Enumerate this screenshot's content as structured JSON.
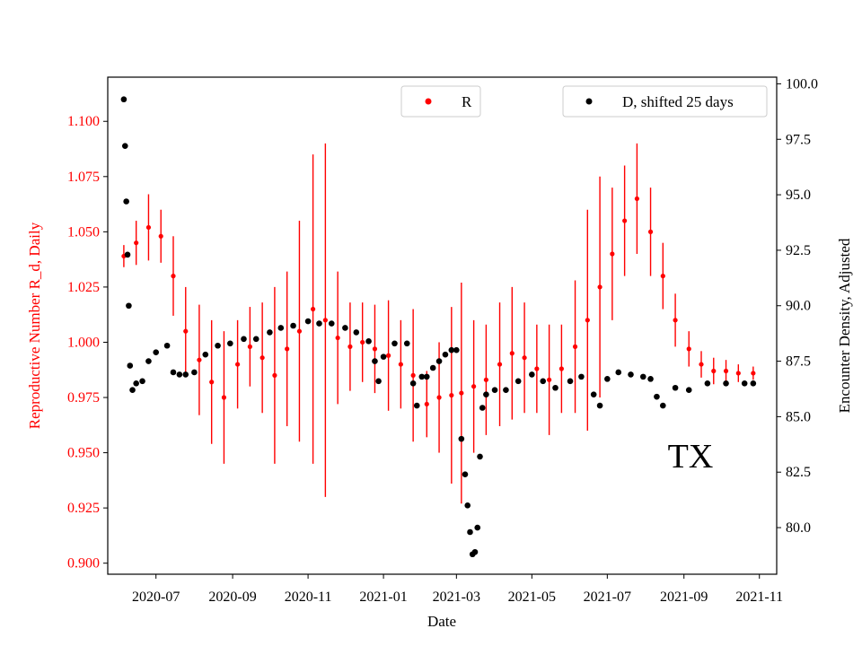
{
  "chart_data": {
    "type": "scatter",
    "annotation": "TX",
    "xlabel": "Date",
    "ylabel_left": "Reproductive Number R_d, Daily",
    "ylabel_right": "Encounter Density, Adjusted",
    "x_range": [
      "2020-05-23",
      "2021-11-15"
    ],
    "ylim_left": [
      0.895,
      1.12
    ],
    "ylim_right": [
      77.9,
      100.3
    ],
    "x_ticks": [
      "2020-07",
      "2020-09",
      "2020-11",
      "2021-01",
      "2021-03",
      "2021-05",
      "2021-07",
      "2021-09",
      "2021-11"
    ],
    "left_ticks": [
      "0.900",
      "0.925",
      "0.950",
      "0.975",
      "1.000",
      "1.025",
      "1.050",
      "1.075",
      "1.100"
    ],
    "right_ticks": [
      "80.0",
      "82.5",
      "85.0",
      "87.5",
      "90.0",
      "92.5",
      "95.0",
      "97.5",
      "100.0"
    ],
    "grid": false,
    "colors": {
      "R": "#ff0000",
      "D": "#000000",
      "left_axis": "#ff0000",
      "right_axis": "#000000"
    },
    "legends": [
      {
        "label": "R",
        "placement": "top-center",
        "color": "#ff0000"
      },
      {
        "label": "D, shifted 25 days",
        "placement": "top-right",
        "color": "#000000"
      }
    ],
    "series": [
      {
        "name": "R",
        "axis": "left",
        "marker": "point-with-errorbars",
        "x": [
          "2020-06-05",
          "2020-06-15",
          "2020-06-25",
          "2020-07-05",
          "2020-07-15",
          "2020-07-25",
          "2020-08-05",
          "2020-08-15",
          "2020-08-25",
          "2020-09-05",
          "2020-09-15",
          "2020-09-25",
          "2020-10-05",
          "2020-10-15",
          "2020-10-25",
          "2020-11-05",
          "2020-11-15",
          "2020-11-25",
          "2020-12-05",
          "2020-12-15",
          "2020-12-25",
          "2021-01-05",
          "2021-01-15",
          "2021-01-25",
          "2021-02-05",
          "2021-02-15",
          "2021-02-25",
          "2021-03-05",
          "2021-03-15",
          "2021-03-25",
          "2021-04-05",
          "2021-04-15",
          "2021-04-25",
          "2021-05-05",
          "2021-05-15",
          "2021-05-25",
          "2021-06-05",
          "2021-06-15",
          "2021-06-25",
          "2021-07-05",
          "2021-07-15",
          "2021-07-25",
          "2021-08-05",
          "2021-08-15",
          "2021-08-25",
          "2021-09-05",
          "2021-09-15",
          "2021-09-25",
          "2021-10-05",
          "2021-10-15",
          "2021-10-27"
        ],
        "y": [
          1.039,
          1.045,
          1.052,
          1.048,
          1.03,
          1.005,
          0.992,
          0.982,
          0.975,
          0.99,
          0.998,
          0.993,
          0.985,
          0.997,
          1.005,
          1.015,
          1.01,
          1.002,
          0.998,
          1.0,
          0.997,
          0.994,
          0.99,
          0.985,
          0.972,
          0.975,
          0.976,
          0.977,
          0.98,
          0.983,
          0.99,
          0.995,
          0.993,
          0.988,
          0.983,
          0.988,
          0.998,
          1.01,
          1.025,
          1.04,
          1.055,
          1.065,
          1.05,
          1.03,
          1.01,
          0.997,
          0.99,
          0.987,
          0.987,
          0.986,
          0.986
        ],
        "err": [
          0.005,
          0.01,
          0.015,
          0.012,
          0.018,
          0.02,
          0.025,
          0.028,
          0.03,
          0.02,
          0.018,
          0.025,
          0.04,
          0.035,
          0.05,
          0.07,
          0.08,
          0.03,
          0.02,
          0.018,
          0.02,
          0.025,
          0.02,
          0.03,
          0.015,
          0.025,
          0.04,
          0.05,
          0.03,
          0.025,
          0.028,
          0.03,
          0.025,
          0.02,
          0.025,
          0.02,
          0.03,
          0.05,
          0.05,
          0.03,
          0.025,
          0.025,
          0.02,
          0.015,
          0.012,
          0.008,
          0.006,
          0.006,
          0.005,
          0.004,
          0.003
        ]
      },
      {
        "name": "D, shifted 25 days",
        "axis": "right",
        "marker": "point",
        "x": [
          "2020-06-05",
          "2020-06-06",
          "2020-06-07",
          "2020-06-08",
          "2020-06-09",
          "2020-06-10",
          "2020-06-12",
          "2020-06-15",
          "2020-06-20",
          "2020-06-25",
          "2020-07-01",
          "2020-07-10",
          "2020-07-15",
          "2020-07-20",
          "2020-07-25",
          "2020-08-01",
          "2020-08-10",
          "2020-08-20",
          "2020-08-30",
          "2020-09-10",
          "2020-09-20",
          "2020-10-01",
          "2020-10-10",
          "2020-10-20",
          "2020-11-01",
          "2020-11-10",
          "2020-11-20",
          "2020-12-01",
          "2020-12-10",
          "2020-12-20",
          "2020-12-25",
          "2020-12-28",
          "2021-01-01",
          "2021-01-10",
          "2021-01-20",
          "2021-01-25",
          "2021-01-28",
          "2021-02-01",
          "2021-02-05",
          "2021-02-10",
          "2021-02-15",
          "2021-02-20",
          "2021-02-25",
          "2021-03-01",
          "2021-03-05",
          "2021-03-08",
          "2021-03-10",
          "2021-03-12",
          "2021-03-14",
          "2021-03-16",
          "2021-03-18",
          "2021-03-20",
          "2021-03-22",
          "2021-03-25",
          "2021-04-01",
          "2021-04-10",
          "2021-04-20",
          "2021-05-01",
          "2021-05-10",
          "2021-05-20",
          "2021-06-01",
          "2021-06-10",
          "2021-06-20",
          "2021-06-25",
          "2021-07-01",
          "2021-07-10",
          "2021-07-20",
          "2021-07-30",
          "2021-08-05",
          "2021-08-10",
          "2021-08-15",
          "2021-08-25",
          "2021-09-05",
          "2021-09-20",
          "2021-10-05",
          "2021-10-20",
          "2021-10-27"
        ],
        "y": [
          99.3,
          97.2,
          94.7,
          92.3,
          90.0,
          87.3,
          86.2,
          86.5,
          86.6,
          87.5,
          87.9,
          88.2,
          87.0,
          86.9,
          86.9,
          87.0,
          87.8,
          88.2,
          88.3,
          88.5,
          88.5,
          88.8,
          89.0,
          89.1,
          89.3,
          89.2,
          89.2,
          89.0,
          88.8,
          88.4,
          87.5,
          86.6,
          87.7,
          88.3,
          88.3,
          86.5,
          85.5,
          86.8,
          86.8,
          87.2,
          87.5,
          87.8,
          88.0,
          88.0,
          84.0,
          82.4,
          81.0,
          79.8,
          78.8,
          78.9,
          80.0,
          83.2,
          85.4,
          86.0,
          86.2,
          86.2,
          86.6,
          86.9,
          86.6,
          86.3,
          86.6,
          86.8,
          86.0,
          85.5,
          86.7,
          87.0,
          86.9,
          86.8,
          86.7,
          85.9,
          85.5,
          86.3,
          86.2,
          86.5,
          86.5,
          86.5,
          86.5
        ]
      }
    ]
  }
}
